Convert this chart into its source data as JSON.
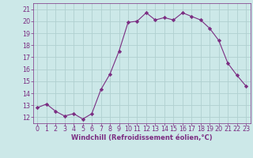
{
  "x": [
    0,
    1,
    2,
    3,
    4,
    5,
    6,
    7,
    8,
    9,
    10,
    11,
    12,
    13,
    14,
    15,
    16,
    17,
    18,
    19,
    20,
    21,
    22,
    23
  ],
  "y": [
    12.8,
    13.1,
    12.5,
    12.1,
    12.3,
    11.85,
    12.3,
    14.3,
    15.6,
    17.5,
    19.9,
    20.0,
    20.7,
    20.1,
    20.3,
    20.1,
    20.7,
    20.4,
    20.1,
    19.4,
    18.4,
    16.5,
    15.5,
    14.6
  ],
  "line_color": "#7b2d82",
  "marker": "D",
  "marker_size": 2.2,
  "bg_color": "#cce8e8",
  "grid_color": "#b0d0d0",
  "xlabel": "Windchill (Refroidissement éolien,°C)",
  "xlabel_color": "#7b2d82",
  "tick_color": "#7b2d82",
  "ylim": [
    11.5,
    21.5
  ],
  "xlim": [
    -0.5,
    23.5
  ],
  "yticks": [
    12,
    13,
    14,
    15,
    16,
    17,
    18,
    19,
    20,
    21
  ],
  "xticks": [
    0,
    1,
    2,
    3,
    4,
    5,
    6,
    7,
    8,
    9,
    10,
    11,
    12,
    13,
    14,
    15,
    16,
    17,
    18,
    19,
    20,
    21,
    22,
    23
  ],
  "tick_fontsize": 5.8,
  "xlabel_fontsize": 6.0,
  "linewidth": 0.8
}
